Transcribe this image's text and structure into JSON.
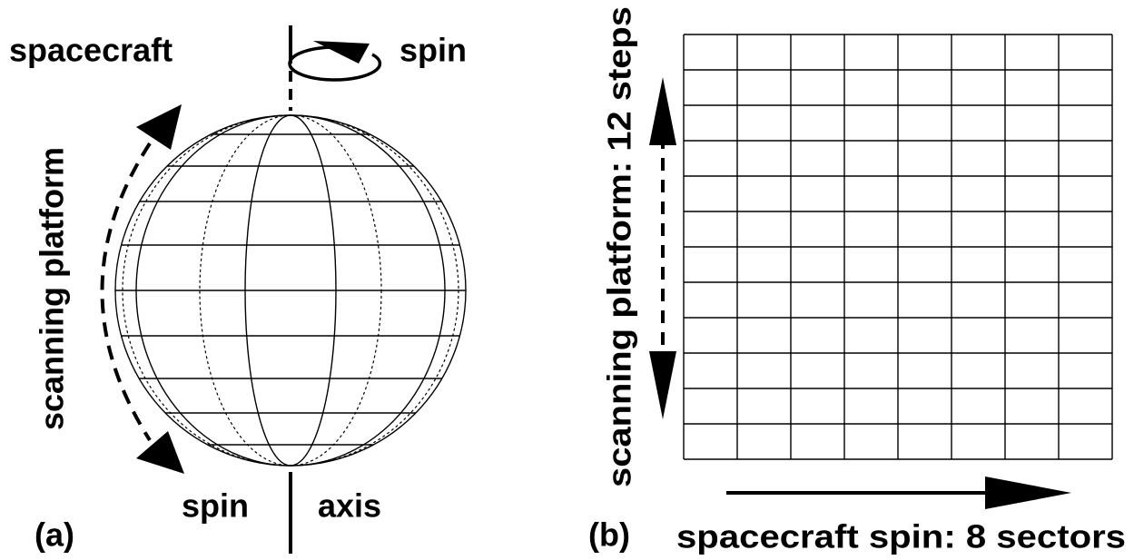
{
  "panel_a": {
    "label": "(a)",
    "spacecraft": "spacecraft",
    "spin_top": "spin",
    "scanning": "scanning platform",
    "spin_bottom": "spin",
    "axis": "axis"
  },
  "panel_b": {
    "label": "(b)",
    "vertical": "scanning platform: 12 steps",
    "horizontal": "spacecraft spin: 8 sectors"
  }
}
